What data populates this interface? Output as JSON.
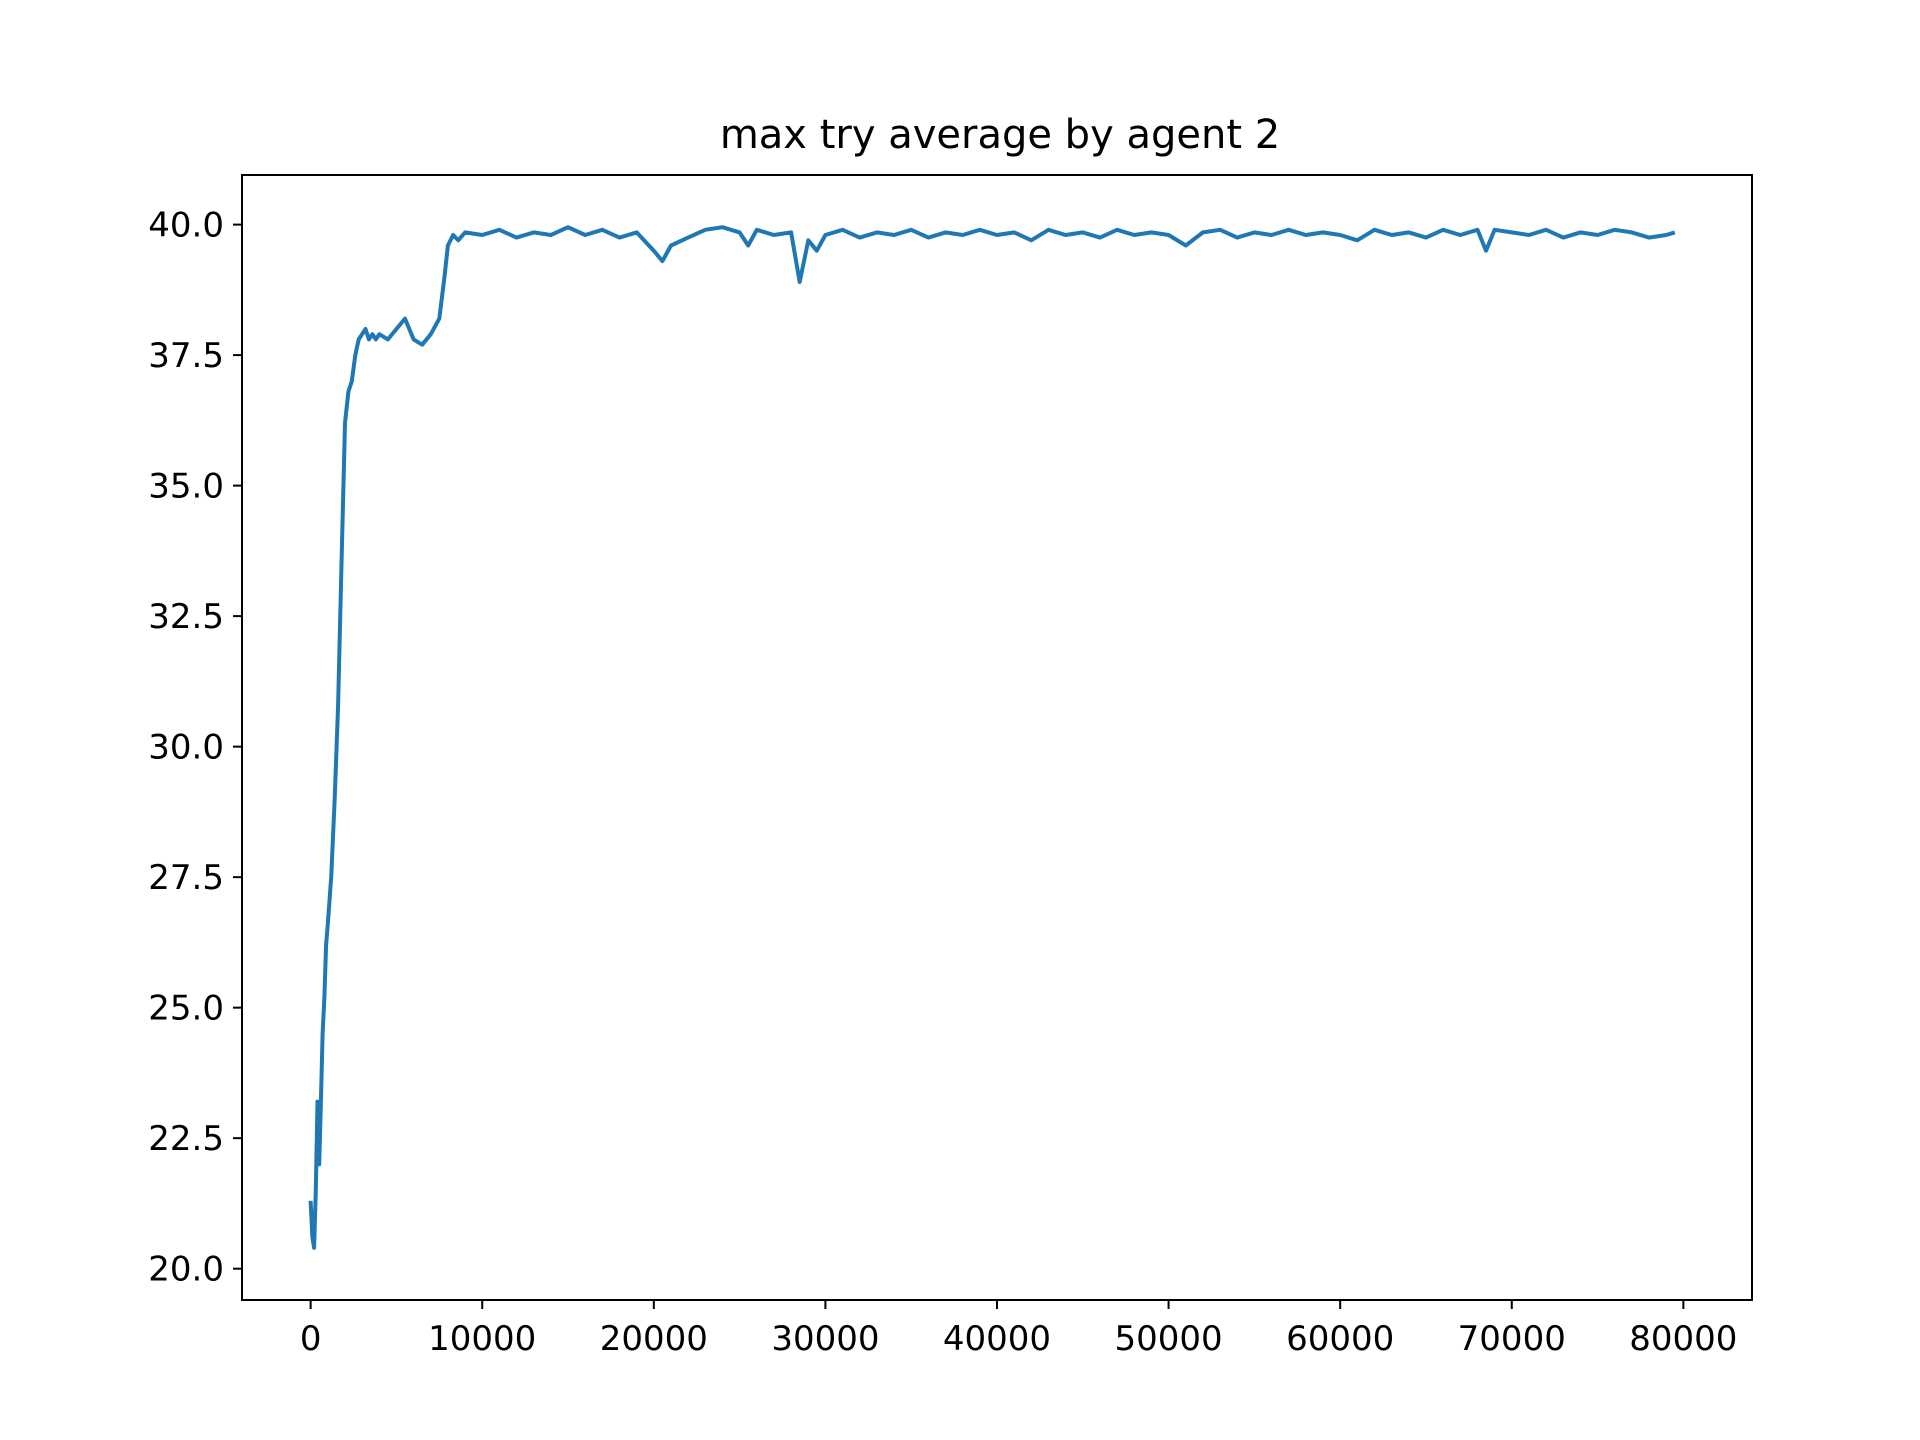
{
  "chart_data": {
    "type": "line",
    "title": "max try average by agent 2",
    "xlabel": "",
    "ylabel": "",
    "xlim": [
      -4000,
      84000
    ],
    "ylim": [
      19.4,
      40.95
    ],
    "xticks": [
      0,
      10000,
      20000,
      30000,
      40000,
      50000,
      60000,
      70000,
      80000
    ],
    "xtick_labels": [
      "0",
      "10000",
      "20000",
      "30000",
      "40000",
      "50000",
      "60000",
      "70000",
      "80000"
    ],
    "yticks": [
      20.0,
      22.5,
      25.0,
      27.5,
      30.0,
      32.5,
      35.0,
      37.5,
      40.0
    ],
    "ytick_labels": [
      "20.0",
      "22.5",
      "25.0",
      "27.5",
      "30.0",
      "32.5",
      "35.0",
      "37.5",
      "40.0"
    ],
    "grid": false,
    "colors": {
      "line": "#1f77b4",
      "axes": "#000000",
      "background": "#ffffff"
    },
    "series": [
      {
        "x": [
          0,
          100,
          200,
          300,
          400,
          500,
          600,
          700,
          800,
          900,
          1000,
          1200,
          1400,
          1600,
          1800,
          2000,
          2200,
          2400,
          2600,
          2800,
          3000,
          3200,
          3400,
          3600,
          3800,
          4000,
          4500,
          5000,
          5500,
          6000,
          6500,
          7000,
          7500,
          7800,
          8000,
          8300,
          8600,
          9000,
          10000,
          11000,
          12000,
          13000,
          14000,
          15000,
          16000,
          17000,
          18000,
          19000,
          20000,
          20500,
          21000,
          22000,
          23000,
          24000,
          25000,
          25500,
          26000,
          27000,
          28000,
          28500,
          29000,
          29500,
          30000,
          31000,
          32000,
          33000,
          34000,
          35000,
          36000,
          37000,
          38000,
          39000,
          40000,
          41000,
          42000,
          43000,
          44000,
          45000,
          46000,
          47000,
          48000,
          49000,
          50000,
          51000,
          52000,
          53000,
          54000,
          55000,
          56000,
          57000,
          58000,
          59000,
          60000,
          61000,
          62000,
          63000,
          64000,
          65000,
          66000,
          67000,
          68000,
          68500,
          69000,
          70000,
          71000,
          72000,
          73000,
          74000,
          75000,
          76000,
          77000,
          78000,
          79000,
          79500
        ],
        "y": [
          21.3,
          20.6,
          20.4,
          21.5,
          23.2,
          22.0,
          23.2,
          24.5,
          25.2,
          26.2,
          26.6,
          27.5,
          29.0,
          30.8,
          33.5,
          36.2,
          36.8,
          37.0,
          37.5,
          37.8,
          37.9,
          38.0,
          37.8,
          37.9,
          37.8,
          37.9,
          37.8,
          38.0,
          38.2,
          37.8,
          37.7,
          37.9,
          38.2,
          39.0,
          39.6,
          39.8,
          39.7,
          39.85,
          39.8,
          39.9,
          39.75,
          39.85,
          39.8,
          39.95,
          39.8,
          39.9,
          39.75,
          39.85,
          39.5,
          39.3,
          39.6,
          39.75,
          39.9,
          39.95,
          39.85,
          39.6,
          39.9,
          39.8,
          39.85,
          38.9,
          39.7,
          39.5,
          39.8,
          39.9,
          39.75,
          39.85,
          39.8,
          39.9,
          39.75,
          39.85,
          39.8,
          39.9,
          39.8,
          39.85,
          39.7,
          39.9,
          39.8,
          39.85,
          39.75,
          39.9,
          39.8,
          39.85,
          39.8,
          39.6,
          39.85,
          39.9,
          39.75,
          39.85,
          39.8,
          39.9,
          39.8,
          39.85,
          39.8,
          39.7,
          39.9,
          39.8,
          39.85,
          39.75,
          39.9,
          39.8,
          39.9,
          39.5,
          39.9,
          39.85,
          39.8,
          39.9,
          39.75,
          39.85,
          39.8,
          39.9,
          39.85,
          39.75,
          39.8,
          39.85
        ]
      }
    ]
  }
}
